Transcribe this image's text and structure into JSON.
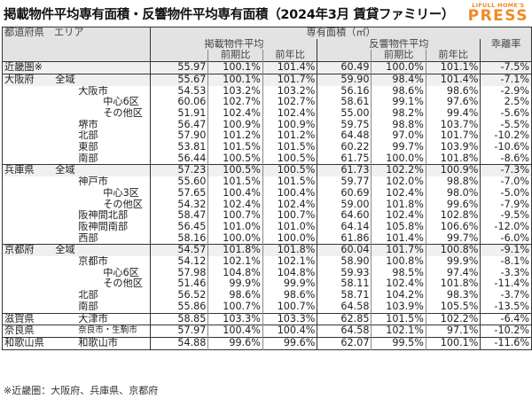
{
  "title": "掲載物件平均専有面積・反響物件平均専有面積（2024年3月 賃貸ファミリー）",
  "logo": {
    "top": "LIFULL HOME'S",
    "main": "PRESS",
    "color": "#f08a24"
  },
  "table": {
    "headers": {
      "region": "都道府県　エリア",
      "area_group": "専有面積（㎡）",
      "listed_avg": "掲載物件平均",
      "response_avg": "反響物件平均",
      "divergence": "乖離率",
      "qoq": "前期比",
      "yoy": "前年比"
    },
    "rows": [
      {
        "pref": "近畿圏※",
        "area": "",
        "indent": 0,
        "listed": "55.97",
        "listed_qoq": "100.1%",
        "listed_yoy": "101.4%",
        "resp": "60.49",
        "resp_qoq": "100.0%",
        "resp_yoy": "101.1%",
        "div": "-7.5%",
        "gray": true,
        "sep": true
      },
      {
        "pref": "大阪府",
        "area": "全域",
        "indent": 0,
        "listed": "55.67",
        "listed_qoq": "100.1%",
        "listed_yoy": "101.7%",
        "resp": "59.90",
        "resp_qoq": "98.4%",
        "resp_yoy": "101.4%",
        "div": "-7.1%",
        "gray": true,
        "sep": true
      },
      {
        "pref": "",
        "area": "大阪市",
        "indent": 1,
        "listed": "54.53",
        "listed_qoq": "103.2%",
        "listed_yoy": "103.2%",
        "resp": "56.16",
        "resp_qoq": "98.6%",
        "resp_yoy": "98.6%",
        "div": "-2.9%"
      },
      {
        "pref": "",
        "area": "中心6区",
        "indent": 2,
        "listed": "60.06",
        "listed_qoq": "102.7%",
        "listed_yoy": "102.7%",
        "resp": "58.61",
        "resp_qoq": "99.1%",
        "resp_yoy": "97.6%",
        "div": "2.5%"
      },
      {
        "pref": "",
        "area": "その他区",
        "indent": 2,
        "listed": "51.91",
        "listed_qoq": "102.4%",
        "listed_yoy": "102.4%",
        "resp": "55.00",
        "resp_qoq": "98.2%",
        "resp_yoy": "99.4%",
        "div": "-5.6%"
      },
      {
        "pref": "",
        "area": "堺市",
        "indent": 1,
        "listed": "56.47",
        "listed_qoq": "100.9%",
        "listed_yoy": "100.9%",
        "resp": "59.75",
        "resp_qoq": "98.8%",
        "resp_yoy": "103.7%",
        "div": "-5.5%"
      },
      {
        "pref": "",
        "area": "北部",
        "indent": 1,
        "listed": "57.90",
        "listed_qoq": "101.2%",
        "listed_yoy": "101.2%",
        "resp": "64.48",
        "resp_qoq": "97.0%",
        "resp_yoy": "101.7%",
        "div": "-10.2%"
      },
      {
        "pref": "",
        "area": "東部",
        "indent": 1,
        "listed": "53.81",
        "listed_qoq": "101.5%",
        "listed_yoy": "101.5%",
        "resp": "60.22",
        "resp_qoq": "99.7%",
        "resp_yoy": "103.9%",
        "div": "-10.6%"
      },
      {
        "pref": "",
        "area": "南部",
        "indent": 1,
        "listed": "56.44",
        "listed_qoq": "100.5%",
        "listed_yoy": "100.5%",
        "resp": "61.75",
        "resp_qoq": "100.0%",
        "resp_yoy": "101.8%",
        "div": "-8.6%"
      },
      {
        "pref": "兵庫県",
        "area": "全域",
        "indent": 0,
        "listed": "57.23",
        "listed_qoq": "100.5%",
        "listed_yoy": "100.5%",
        "resp": "61.73",
        "resp_qoq": "102.2%",
        "resp_yoy": "100.9%",
        "div": "-7.3%",
        "gray": true,
        "sep": true
      },
      {
        "pref": "",
        "area": "神戸市",
        "indent": 1,
        "listed": "55.60",
        "listed_qoq": "101.5%",
        "listed_yoy": "101.5%",
        "resp": "59.77",
        "resp_qoq": "102.0%",
        "resp_yoy": "98.8%",
        "div": "-7.0%"
      },
      {
        "pref": "",
        "area": "中心3区",
        "indent": 2,
        "listed": "57.65",
        "listed_qoq": "100.4%",
        "listed_yoy": "100.4%",
        "resp": "60.69",
        "resp_qoq": "102.4%",
        "resp_yoy": "98.0%",
        "div": "-5.0%"
      },
      {
        "pref": "",
        "area": "その他区",
        "indent": 2,
        "listed": "54.32",
        "listed_qoq": "102.4%",
        "listed_yoy": "102.4%",
        "resp": "59.00",
        "resp_qoq": "101.8%",
        "resp_yoy": "99.6%",
        "div": "-7.9%"
      },
      {
        "pref": "",
        "area": "阪神間北部",
        "indent": 1,
        "listed": "58.47",
        "listed_qoq": "100.7%",
        "listed_yoy": "100.7%",
        "resp": "64.60",
        "resp_qoq": "102.4%",
        "resp_yoy": "102.8%",
        "div": "-9.5%"
      },
      {
        "pref": "",
        "area": "阪神間南部",
        "indent": 1,
        "listed": "56.45",
        "listed_qoq": "101.0%",
        "listed_yoy": "101.0%",
        "resp": "64.14",
        "resp_qoq": "105.8%",
        "resp_yoy": "106.6%",
        "div": "-12.0%"
      },
      {
        "pref": "",
        "area": "西部",
        "indent": 1,
        "listed": "58.16",
        "listed_qoq": "100.0%",
        "listed_yoy": "100.0%",
        "resp": "61.86",
        "resp_qoq": "101.4%",
        "resp_yoy": "99.7%",
        "div": "-6.0%"
      },
      {
        "pref": "京都府",
        "area": "全域",
        "indent": 0,
        "listed": "54.57",
        "listed_qoq": "101.8%",
        "listed_yoy": "101.8%",
        "resp": "60.04",
        "resp_qoq": "101.7%",
        "resp_yoy": "100.8%",
        "div": "-9.1%",
        "gray": true,
        "sep": true
      },
      {
        "pref": "",
        "area": "京都市",
        "indent": 1,
        "listed": "54.12",
        "listed_qoq": "102.1%",
        "listed_yoy": "102.1%",
        "resp": "58.90",
        "resp_qoq": "100.8%",
        "resp_yoy": "99.9%",
        "div": "-8.1%"
      },
      {
        "pref": "",
        "area": "中心6区",
        "indent": 2,
        "listed": "57.98",
        "listed_qoq": "104.8%",
        "listed_yoy": "104.8%",
        "resp": "59.93",
        "resp_qoq": "98.5%",
        "resp_yoy": "97.4%",
        "div": "-3.3%"
      },
      {
        "pref": "",
        "area": "その他区",
        "indent": 2,
        "listed": "51.46",
        "listed_qoq": "99.9%",
        "listed_yoy": "99.9%",
        "resp": "58.11",
        "resp_qoq": "102.4%",
        "resp_yoy": "101.8%",
        "div": "-11.4%"
      },
      {
        "pref": "",
        "area": "北部",
        "indent": 1,
        "listed": "56.52",
        "listed_qoq": "98.6%",
        "listed_yoy": "98.6%",
        "resp": "58.71",
        "resp_qoq": "104.2%",
        "resp_yoy": "98.3%",
        "div": "-3.7%"
      },
      {
        "pref": "",
        "area": "南部",
        "indent": 1,
        "listed": "55.86",
        "listed_qoq": "100.7%",
        "listed_yoy": "100.7%",
        "resp": "64.58",
        "resp_qoq": "103.9%",
        "resp_yoy": "105.5%",
        "div": "-13.5%"
      },
      {
        "pref": "滋賀県",
        "area": "大津市",
        "indent": 1,
        "listed": "58.85",
        "listed_qoq": "103.3%",
        "listed_yoy": "103.3%",
        "resp": "62.85",
        "resp_qoq": "101.5%",
        "resp_yoy": "102.2%",
        "div": "-6.4%",
        "sep": true
      },
      {
        "pref": "奈良県",
        "area": "奈良市・生駒市",
        "indent": 1,
        "small": true,
        "listed": "57.97",
        "listed_qoq": "100.4%",
        "listed_yoy": "100.4%",
        "resp": "64.58",
        "resp_qoq": "102.1%",
        "resp_yoy": "97.1%",
        "div": "-10.2%",
        "sep": true
      },
      {
        "pref": "和歌山県",
        "area": "和歌山市",
        "indent": 1,
        "listed": "54.88",
        "listed_qoq": "99.6%",
        "listed_yoy": "99.6%",
        "resp": "62.07",
        "resp_qoq": "99.5%",
        "resp_yoy": "100.1%",
        "div": "-11.6%",
        "sep": true
      }
    ]
  },
  "footnote": "※近畿圏：大阪府、兵庫県、京都府"
}
